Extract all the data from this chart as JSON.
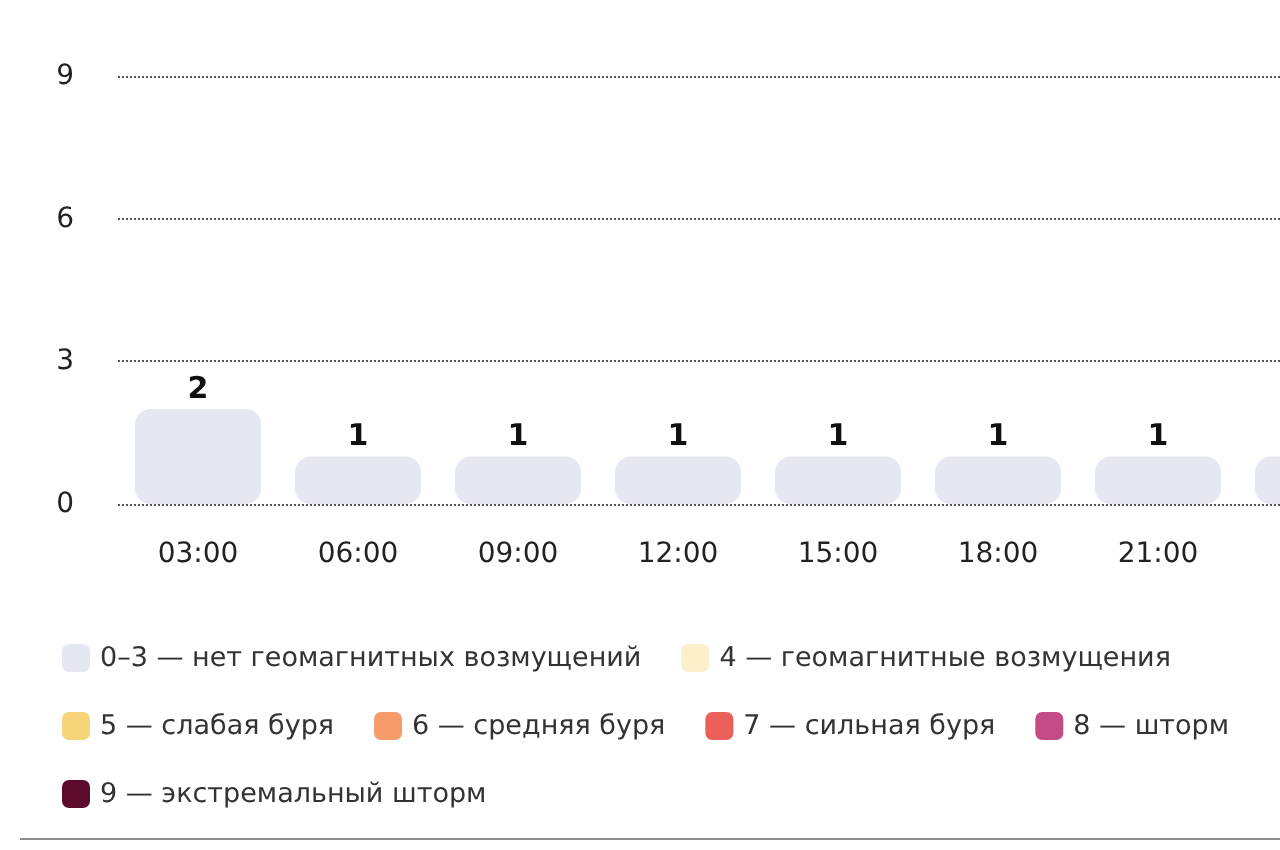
{
  "chart_data": {
    "type": "bar",
    "categories": [
      "03:00",
      "06:00",
      "09:00",
      "12:00",
      "15:00",
      "18:00",
      "21:00",
      null
    ],
    "series": [
      {
        "name": "0–3 — нет геомагнитных возмущений",
        "color": "#e6e8f1",
        "values": [
          2,
          1,
          1,
          1,
          1,
          1,
          1,
          1
        ],
        "value_labels": [
          "2",
          "1",
          "1",
          "1",
          "1",
          "1",
          "1",
          null
        ]
      },
      {
        "name": "4 — геомагнитные возмущения",
        "color": "#fcefcb",
        "values": [
          null,
          null,
          null,
          null,
          null,
          null,
          null,
          null
        ]
      },
      {
        "name": "5 — слабая буря",
        "color": "#f7d47a",
        "values": [
          null,
          null,
          null,
          null,
          null,
          null,
          null,
          null
        ]
      },
      {
        "name": "6 — средняя буря",
        "color": "#f59a69",
        "values": [
          null,
          null,
          null,
          null,
          null,
          null,
          null,
          null
        ]
      },
      {
        "name": "7 — сильная буря",
        "color": "#ec605c",
        "values": [
          null,
          null,
          null,
          null,
          null,
          null,
          null,
          null
        ]
      },
      {
        "name": "8 — шторм",
        "color": "#c44b86",
        "values": [
          null,
          null,
          null,
          null,
          null,
          null,
          null,
          null
        ]
      },
      {
        "name": "9 — экстремальный шторм",
        "color": "#5c0b2d",
        "values": [
          null,
          null,
          null,
          null,
          null,
          null,
          null,
          null
        ]
      }
    ],
    "ylim": [
      0,
      9
    ],
    "yticks": [
      0,
      3,
      6,
      9
    ],
    "grid": "y",
    "legend": "bottom"
  }
}
